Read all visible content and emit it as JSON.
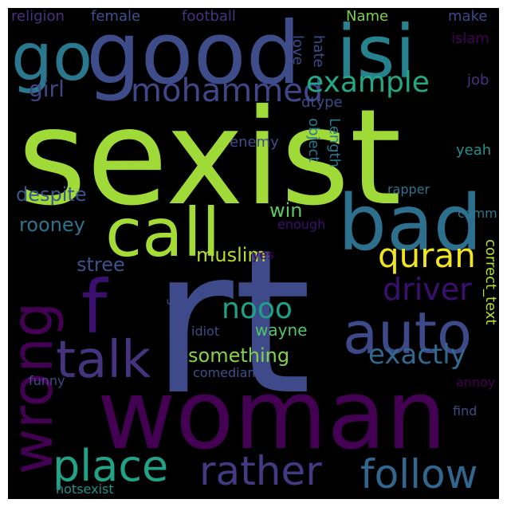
{
  "cloud": {
    "words": {
      "sexist": "sexist",
      "rt": "rt",
      "woman": "woman",
      "good": "good",
      "isi": "isi",
      "go": "go",
      "call": "call",
      "bad": "bad",
      "wrong": "wrong",
      "f": "f",
      "auto": "auto",
      "talk": "talk",
      "place": "place",
      "rather": "rather",
      "follow": "follow",
      "quran": "quran",
      "mohammed": "mohammed",
      "example": "example",
      "driver": "driver",
      "nooo": "nooo",
      "exactly": "exactly",
      "something": "something",
      "girl": "girl",
      "despite": "despite",
      "rooney": "rooney",
      "win": "win",
      "muslim": "muslim",
      "stree": "stree",
      "wayne": "wayne",
      "religion": "religion",
      "female": "female",
      "football": "football",
      "Name": "Name",
      "love": "love",
      "hate": "hate",
      "make": "make",
      "islam": "islam",
      "job": "job",
      "dtype": "dtype",
      "object": "object",
      "Length": "Length",
      "enemy": "enemy",
      "yeah": "yeah",
      "rapper": "rapper",
      "comm": "comm",
      "enough": "enough",
      "yes": "yes",
      "correct_text": "correct_text",
      "slightest": "slightest",
      "idiot": "idiot",
      "comedian": "comedian",
      "annoy": "annoy",
      "funny": "funny",
      "find": "find",
      "notsexist": "notsexist"
    }
  }
}
